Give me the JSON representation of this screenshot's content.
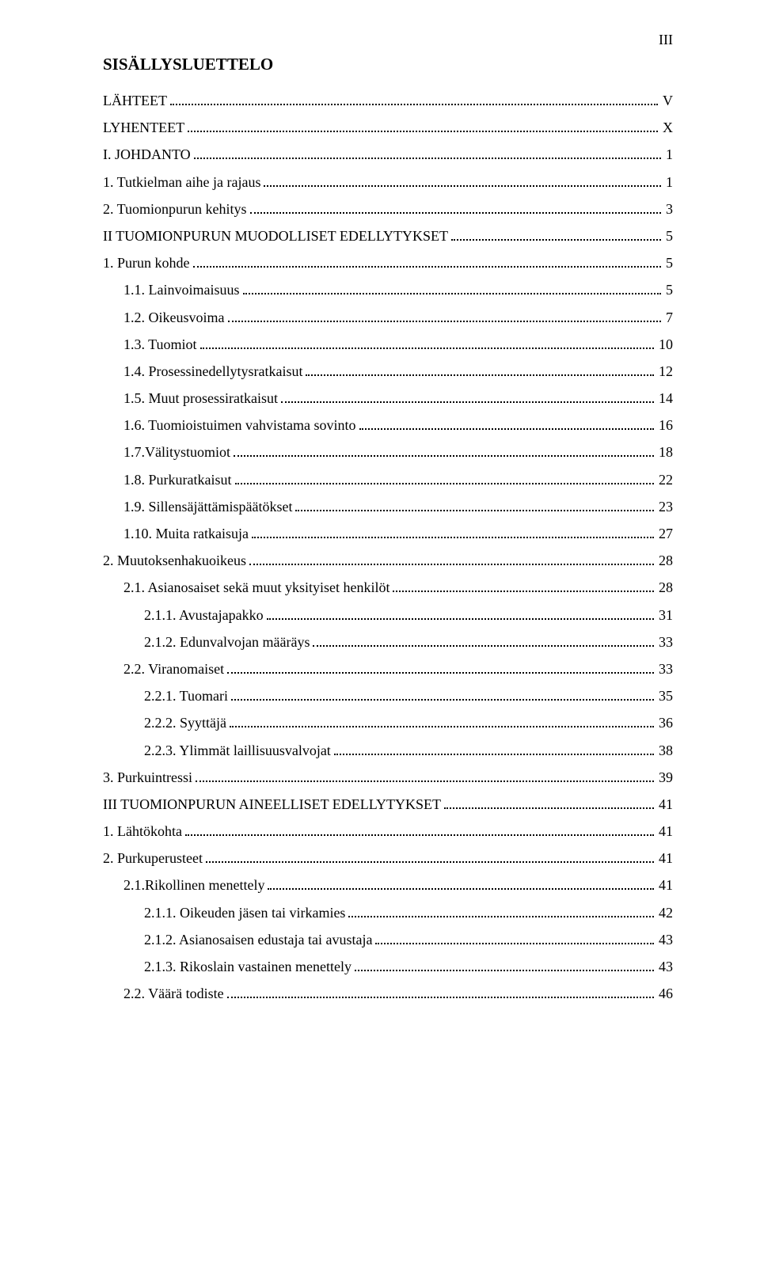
{
  "page_number": "III",
  "title": "SISÄLLYSLUETTELO",
  "entries": [
    {
      "label": "LÄHTEET",
      "page": "V",
      "indent": 0
    },
    {
      "label": "LYHENTEET",
      "page": "X",
      "indent": 0
    },
    {
      "label": "I. JOHDANTO",
      "page": "1",
      "indent": 0
    },
    {
      "label": "1. Tutkielman aihe ja rajaus",
      "page": "1",
      "indent": 0
    },
    {
      "label": "2. Tuomionpurun kehitys",
      "page": "3",
      "indent": 0
    },
    {
      "label": "II TUOMIONPURUN MUODOLLISET EDELLYTYKSET",
      "page": "5",
      "indent": 0
    },
    {
      "label": "1. Purun kohde",
      "page": "5",
      "indent": 0
    },
    {
      "label": "1.1. Lainvoimaisuus",
      "page": "5",
      "indent": 1
    },
    {
      "label": "1.2. Oikeusvoima",
      "page": "7",
      "indent": 1
    },
    {
      "label": "1.3. Tuomiot",
      "page": "10",
      "indent": 1
    },
    {
      "label": "1.4. Prosessinedellytysratkaisut",
      "page": "12",
      "indent": 1
    },
    {
      "label": "1.5. Muut prosessiratkaisut",
      "page": "14",
      "indent": 1
    },
    {
      "label": "1.6. Tuomioistuimen vahvistama sovinto",
      "page": "16",
      "indent": 1
    },
    {
      "label": "1.7.Välitystuomiot",
      "page": "18",
      "indent": 1
    },
    {
      "label": "1.8. Purkuratkaisut",
      "page": "22",
      "indent": 1
    },
    {
      "label": "1.9. Sillensäjättämispäätökset",
      "page": "23",
      "indent": 1
    },
    {
      "label": "1.10. Muita ratkaisuja",
      "page": "27",
      "indent": 1
    },
    {
      "label": "2. Muutoksenhakuoikeus",
      "page": "28",
      "indent": 0
    },
    {
      "label": "2.1. Asianosaiset sekä muut yksityiset henkilöt",
      "page": "28",
      "indent": 1
    },
    {
      "label": "2.1.1. Avustajapakko",
      "page": "31",
      "indent": 2
    },
    {
      "label": "2.1.2. Edunvalvojan määräys",
      "page": "33",
      "indent": 2
    },
    {
      "label": "2.2. Viranomaiset",
      "page": "33",
      "indent": 1
    },
    {
      "label": "2.2.1. Tuomari",
      "page": "35",
      "indent": 2
    },
    {
      "label": "2.2.2. Syyttäjä",
      "page": "36",
      "indent": 2
    },
    {
      "label": "2.2.3. Ylimmät laillisuusvalvojat",
      "page": "38",
      "indent": 2
    },
    {
      "label": "3. Purkuintressi",
      "page": "39",
      "indent": 0
    },
    {
      "label": "III TUOMIONPURUN AINEELLISET EDELLYTYKSET",
      "page": "41",
      "indent": 0
    },
    {
      "label": "1. Lähtökohta",
      "page": "41",
      "indent": 0
    },
    {
      "label": "2. Purkuperusteet",
      "page": "41",
      "indent": 0
    },
    {
      "label": "2.1.Rikollinen menettely",
      "page": "41",
      "indent": 1
    },
    {
      "label": "2.1.1. Oikeuden jäsen tai virkamies",
      "page": "42",
      "indent": 2
    },
    {
      "label": "2.1.2. Asianosaisen edustaja tai avustaja",
      "page": "43",
      "indent": 2
    },
    {
      "label": "2.1.3. Rikoslain vastainen menettely",
      "page": "43",
      "indent": 2
    },
    {
      "label": "2.2. Väärä todiste",
      "page": "46",
      "indent": 1
    }
  ]
}
